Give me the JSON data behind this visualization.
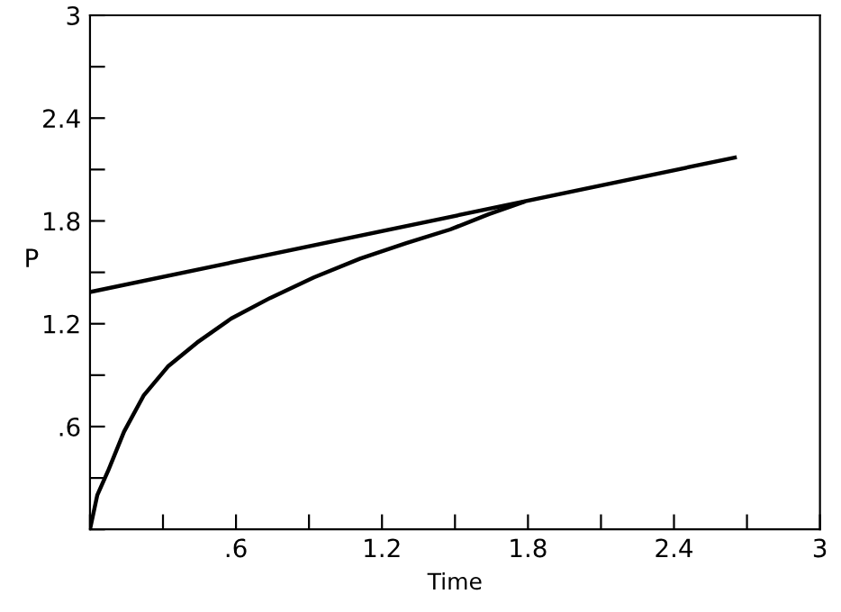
{
  "chart_data": {
    "type": "line",
    "xlabel": "Time",
    "ylabel": "P",
    "series": [
      {
        "color": "#000000",
        "x": [
          0,
          0.03,
          0.074,
          0.14,
          0.22,
          0.32,
          0.44,
          0.58,
          0.74,
          0.92,
          1.11,
          1.3,
          1.48,
          1.64,
          1.78
        ],
        "values": [
          0,
          0.2,
          0.34,
          0.57,
          0.78,
          0.95,
          1.09,
          1.23,
          1.35,
          1.47,
          1.58,
          1.67,
          1.75,
          1.84,
          1.91
        ]
      },
      {
        "color": "#000000",
        "x": [
          0,
          2.65
        ],
        "values": [
          1.385,
          2.17
        ]
      }
    ],
    "xlim": [
      0,
      3
    ],
    "ylim": [
      0,
      3
    ],
    "xticks": [
      {
        "value": 0,
        "label": null
      },
      {
        "value": 0.3,
        "label": null
      },
      {
        "value": 0.6,
        "label": ".6"
      },
      {
        "value": 0.9,
        "label": null
      },
      {
        "value": 1.2,
        "label": "1.2"
      },
      {
        "value": 1.5,
        "label": null
      },
      {
        "value": 1.8,
        "label": "1.8"
      },
      {
        "value": 2.1,
        "label": null
      },
      {
        "value": 2.4,
        "label": "2.4"
      },
      {
        "value": 2.7,
        "label": null
      },
      3
    ],
    "yticks": [
      {
        "value": 0,
        "label": null
      },
      {
        "value": 0.3,
        "label": null
      },
      {
        "value": 0.6,
        "label": ".6"
      },
      {
        "value": 0.9,
        "label": null
      },
      {
        "value": 1.2,
        "label": "1.2"
      },
      {
        "value": 1.5,
        "label": null
      },
      {
        "value": 1.8,
        "label": "1.8"
      },
      {
        "value": 2.1,
        "label": null
      },
      {
        "value": 2.4,
        "label": "2.4"
      },
      {
        "value": 2.7,
        "label": null
      },
      3
    ],
    "grid": false,
    "legend": false,
    "marker": "none",
    "line_style": "solid"
  }
}
